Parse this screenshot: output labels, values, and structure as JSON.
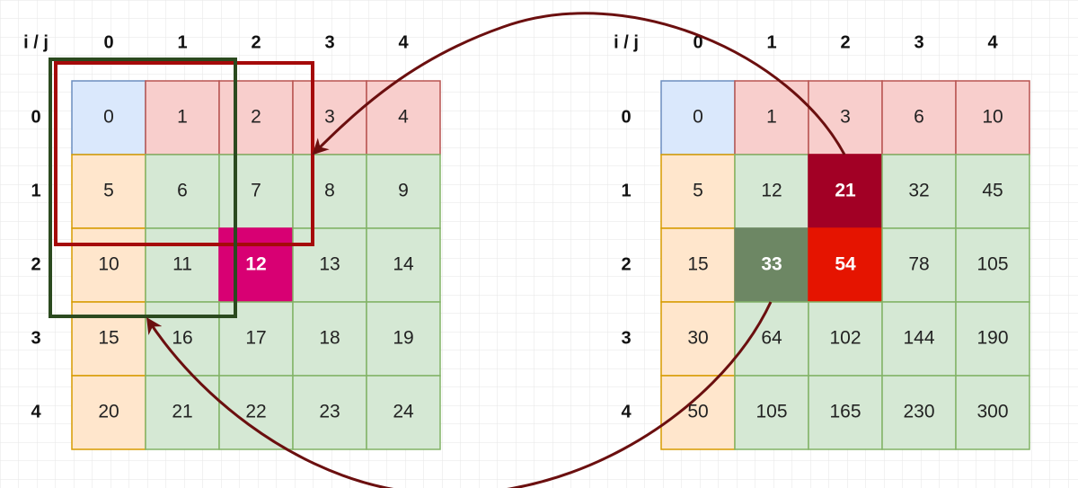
{
  "left_grid": {
    "corner": "i / j",
    "columns": [
      0,
      1,
      2,
      3,
      4
    ],
    "rows": [
      0,
      1,
      2,
      3,
      4
    ],
    "cells": [
      [
        0,
        1,
        2,
        3,
        4
      ],
      [
        5,
        6,
        7,
        8,
        9
      ],
      [
        10,
        11,
        12,
        13,
        14
      ],
      [
        15,
        16,
        17,
        18,
        19
      ],
      [
        20,
        21,
        22,
        23,
        24
      ]
    ]
  },
  "right_grid": {
    "corner": "i / j",
    "columns": [
      0,
      1,
      2,
      3,
      4
    ],
    "rows": [
      0,
      1,
      2,
      3,
      4
    ],
    "cells": [
      [
        0,
        1,
        3,
        6,
        10
      ],
      [
        5,
        12,
        21,
        32,
        45
      ],
      [
        15,
        33,
        54,
        78,
        105
      ],
      [
        30,
        64,
        102,
        144,
        190
      ],
      [
        50,
        105,
        165,
        230,
        300
      ]
    ]
  }
}
